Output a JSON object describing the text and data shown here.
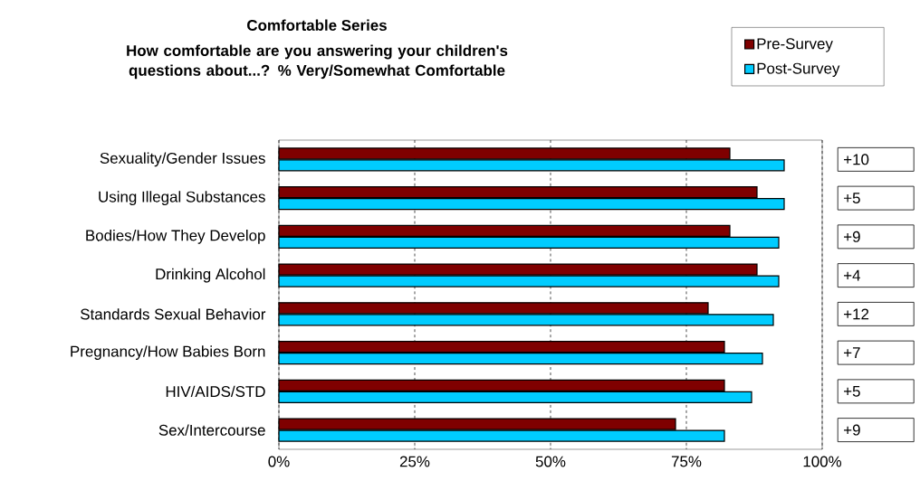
{
  "chart_data": {
    "type": "bar",
    "orientation": "horizontal",
    "title": "Comfortable Series",
    "subtitle": "How comfortable are you answering your children's questions about...?   % Very/Somewhat Comfortable",
    "categories": [
      "Sexuality/Gender Issues",
      "Using Illegal Substances",
      "Bodies/How They Develop",
      "Drinking Alcohol",
      "Standards Sexual Behavior",
      "Pregnancy/How Babies Born",
      "HIV/AIDS/STD",
      "Sex/Intercourse"
    ],
    "series": [
      {
        "name": "Pre-Survey",
        "color": "#7f0000",
        "values": [
          83,
          88,
          83,
          88,
          79,
          82,
          82,
          73
        ]
      },
      {
        "name": "Post-Survey",
        "color": "#00ccff",
        "values": [
          93,
          93,
          92,
          92,
          91,
          89,
          87,
          82
        ]
      }
    ],
    "xlim": [
      0,
      100
    ],
    "xticks": [
      {
        "value": 0,
        "label": "0%"
      },
      {
        "value": 25,
        "label": "25%"
      },
      {
        "value": 50,
        "label": "50%"
      },
      {
        "value": 75,
        "label": "75%"
      },
      {
        "value": 100,
        "label": "100%"
      }
    ],
    "grid": "x",
    "legend": "top right",
    "annotations": [
      "+10",
      "+5",
      "+9",
      "+4",
      "+12",
      "+7",
      "+5",
      "+9"
    ]
  }
}
